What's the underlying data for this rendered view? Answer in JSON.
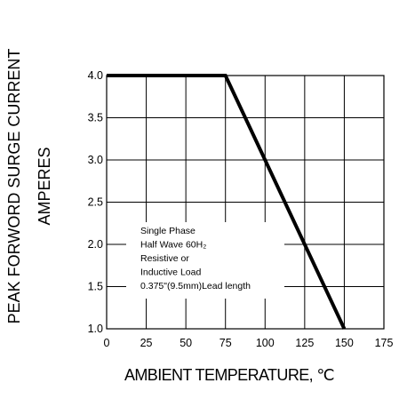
{
  "chart_data": {
    "type": "line",
    "title": "",
    "xlabel": "AMBIENT TEMPERATURE, ℃",
    "ylabel": [
      "PEAK FORWORD SURGE CURRENT",
      "AMPERES"
    ],
    "xlim": [
      0,
      175
    ],
    "ylim": [
      1.0,
      4.0
    ],
    "x_ticks": [
      "0",
      "25",
      "50",
      "75",
      "100",
      "125",
      "150",
      "175"
    ],
    "y_ticks": [
      "1.0",
      "1.5",
      "2.0",
      "2.5",
      "3.0",
      "3.5",
      "4.0"
    ],
    "grid": true,
    "series": [
      {
        "x": [
          0,
          75,
          150
        ],
        "y": [
          4.0,
          4.0,
          1.0
        ]
      }
    ],
    "annotation": [
      "Single Phase",
      "Half Wave 60H₂",
      "Resistive or",
      "Inductive Load",
      "0.375\"(9.5mm)Lead length"
    ]
  },
  "colors": {
    "line": "#000000",
    "grid": "#000000",
    "background": "#ffffff"
  }
}
